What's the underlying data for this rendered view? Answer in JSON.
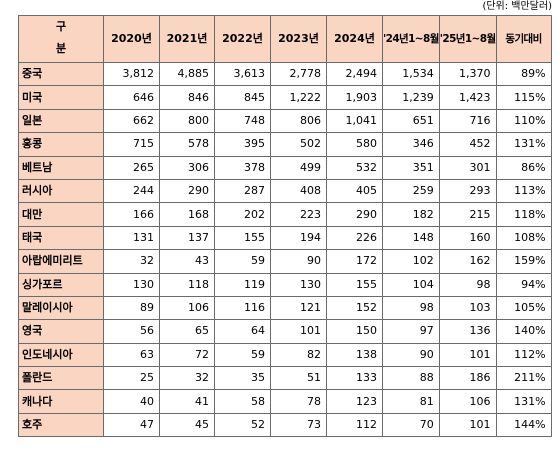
{
  "unit_note": "(단위: 백만달러)",
  "header": {
    "gubun_top": "구",
    "gubun_bottom": "분",
    "columns": [
      "2020년",
      "2021년",
      "2022년",
      "2023년",
      "2024년",
      "'24년1~8월",
      "'25년1~8월",
      "동기대비"
    ]
  },
  "rows": [
    {
      "country": "중국",
      "values": [
        "3,812",
        "4,885",
        "3,613",
        "2,778",
        "2,494",
        "1,534",
        "1,370",
        "89%"
      ]
    },
    {
      "country": "미국",
      "values": [
        "646",
        "846",
        "845",
        "1,222",
        "1,903",
        "1,239",
        "1,423",
        "115%"
      ]
    },
    {
      "country": "일본",
      "values": [
        "662",
        "800",
        "748",
        "806",
        "1,041",
        "651",
        "716",
        "110%"
      ]
    },
    {
      "country": "홍콩",
      "values": [
        "715",
        "578",
        "395",
        "502",
        "580",
        "346",
        "452",
        "131%"
      ]
    },
    {
      "country": "베트남",
      "values": [
        "265",
        "306",
        "378",
        "499",
        "532",
        "351",
        "301",
        "86%"
      ]
    },
    {
      "country": "러시아",
      "values": [
        "244",
        "290",
        "287",
        "408",
        "405",
        "259",
        "293",
        "113%"
      ]
    },
    {
      "country": "대만",
      "values": [
        "166",
        "168",
        "202",
        "223",
        "290",
        "182",
        "215",
        "118%"
      ]
    },
    {
      "country": "태국",
      "values": [
        "131",
        "137",
        "155",
        "194",
        "226",
        "148",
        "160",
        "108%"
      ]
    },
    {
      "country": "아랍에미리트",
      "values": [
        "32",
        "43",
        "59",
        "90",
        "172",
        "102",
        "162",
        "159%"
      ]
    },
    {
      "country": "싱가포르",
      "values": [
        "130",
        "118",
        "119",
        "130",
        "155",
        "104",
        "98",
        "94%"
      ]
    },
    {
      "country": "말레이시아",
      "values": [
        "89",
        "106",
        "116",
        "121",
        "152",
        "98",
        "103",
        "105%"
      ]
    },
    {
      "country": "영국",
      "values": [
        "56",
        "65",
        "64",
        "101",
        "150",
        "97",
        "136",
        "140%"
      ]
    },
    {
      "country": "인도네시아",
      "values": [
        "63",
        "72",
        "59",
        "82",
        "138",
        "90",
        "101",
        "112%"
      ]
    },
    {
      "country": "폴란드",
      "values": [
        "25",
        "32",
        "35",
        "51",
        "133",
        "88",
        "186",
        "211%"
      ]
    },
    {
      "country": "캐나다",
      "values": [
        "40",
        "41",
        "58",
        "78",
        "123",
        "81",
        "106",
        "131%"
      ]
    },
    {
      "country": "호주",
      "values": [
        "47",
        "45",
        "52",
        "73",
        "112",
        "70",
        "101",
        "144%"
      ]
    }
  ]
}
